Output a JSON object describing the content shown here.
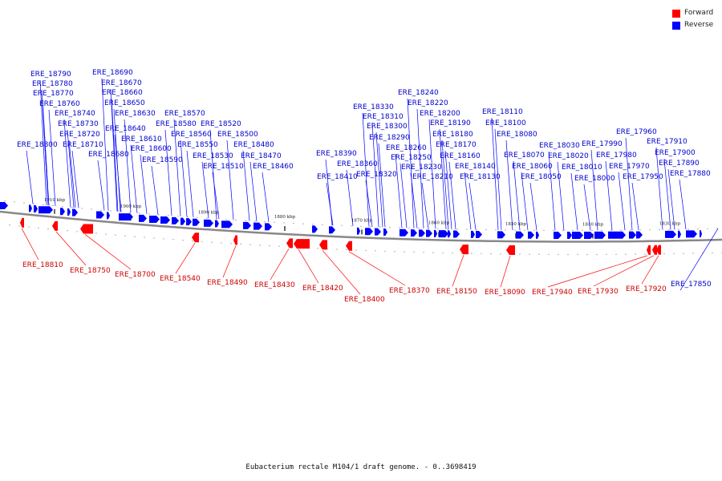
{
  "legend": {
    "forward": "Forward",
    "reverse": "Reverse"
  },
  "colors": {
    "forward": "#ff0000",
    "reverse": "#0000ff",
    "forward_label": "#cc0000",
    "reverse_label": "#0000cc",
    "backbone": "#888888"
  },
  "caption": "Eubacterium rectale M104/1 draft genome. - 0..3698419",
  "ticks": [
    "1910 kbp",
    "1900 kbp",
    "1890 kbp",
    "1880 kbp",
    "1870 kbp",
    "1860 kbp",
    "1850 kbp",
    "1840 kbp",
    "1830 kbp"
  ],
  "reverse_genes": [
    "ERE_18790",
    "ERE_18780",
    "ERE_18770",
    "ERE_18760",
    "ERE_18740",
    "ERE_18730",
    "ERE_18720",
    "ERE_18710",
    "ERE_18800",
    "ERE_18690",
    "ERE_18670",
    "ERE_18660",
    "ERE_18650",
    "ERE_18630",
    "ERE_18640",
    "ERE_18610",
    "ERE_18600",
    "ERE_18680",
    "ERE_18590",
    "ERE_18570",
    "ERE_18580",
    "ERE_18560",
    "ERE_18550",
    "ERE_18530",
    "ERE_18510",
    "ERE_18520",
    "ERE_18500",
    "ERE_18480",
    "ERE_18470",
    "ERE_18460",
    "ERE_18410",
    "ERE_18390",
    "ERE_18360",
    "ERE_18320",
    "ERE_18330",
    "ERE_18310",
    "ERE_18300",
    "ERE_18290",
    "ERE_18260",
    "ERE_18250",
    "ERE_18230",
    "ERE_18240",
    "ERE_18220",
    "ERE_18200",
    "ERE_18190",
    "ERE_18180",
    "ERE_18170",
    "ERE_18160",
    "ERE_18140",
    "ERE_18210",
    "ERE_18130",
    "ERE_18110",
    "ERE_18100",
    "ERE_18080",
    "ERE_18070",
    "ERE_18060",
    "ERE_18050",
    "ERE_18030",
    "ERE_18020",
    "ERE_18010",
    "ERE_18000",
    "ERE_17990",
    "ERE_17980",
    "ERE_17970",
    "ERE_17960",
    "ERE_17950",
    "ERE_17910",
    "ERE_17900",
    "ERE_17890",
    "ERE_17880",
    "ERE_17850"
  ],
  "forward_genes": [
    "ERE_18810",
    "ERE_18750",
    "ERE_18700",
    "ERE_18540",
    "ERE_18490",
    "ERE_18430",
    "ERE_18420",
    "ERE_18400",
    "ERE_18370",
    "ERE_18150",
    "ERE_18090",
    "ERE_17940",
    "ERE_17930",
    "ERE_17920"
  ]
}
